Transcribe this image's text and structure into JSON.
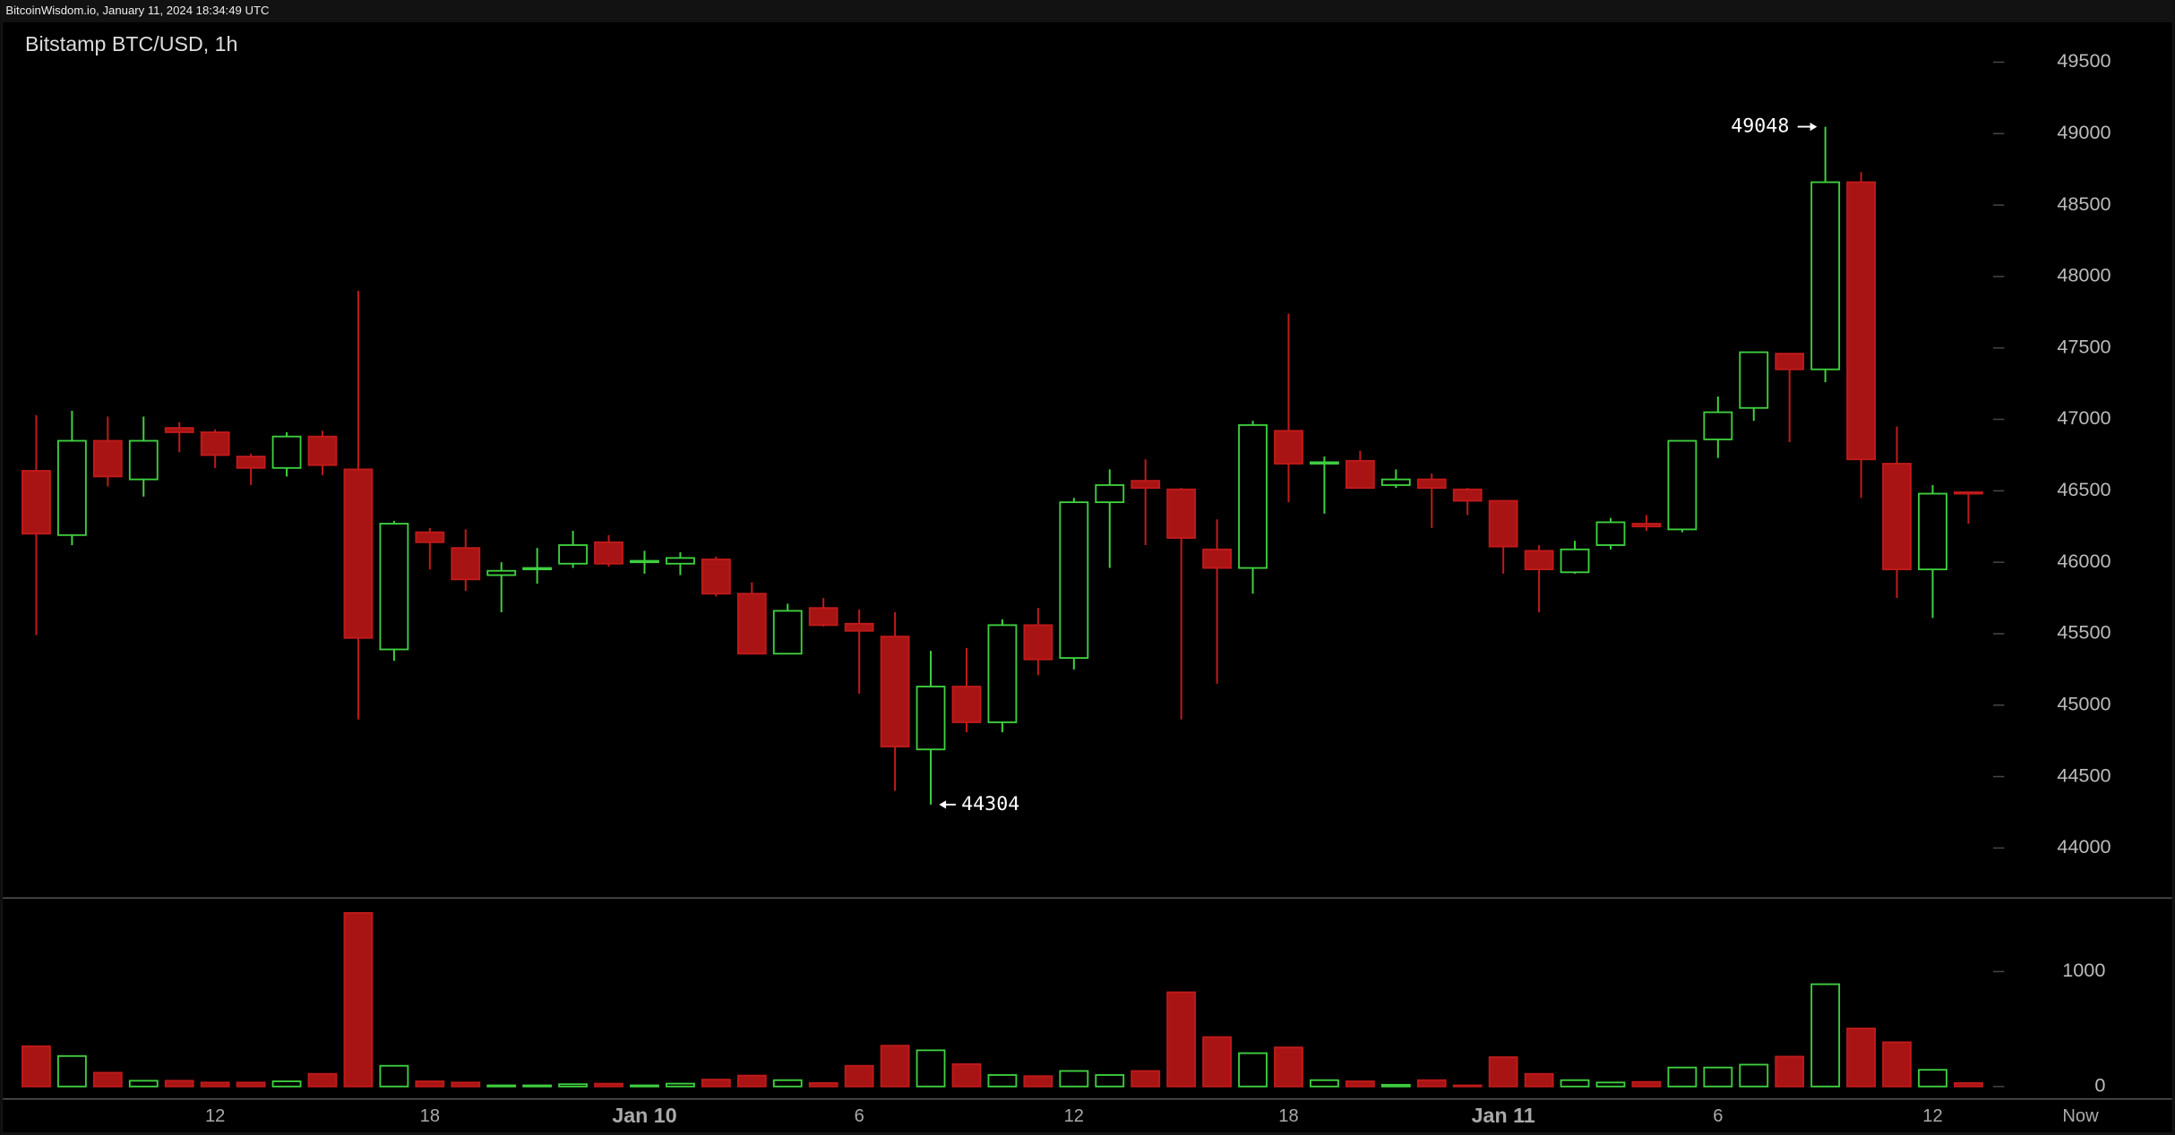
{
  "header": "BitcoinWisdom.io, January 11, 2024 18:34:49 UTC",
  "chart_data": {
    "type": "candlestick",
    "title": "Bitstamp BTC/USD, 1h",
    "categories": [
      null,
      null,
      null,
      null,
      null,
      "12",
      null,
      null,
      null,
      null,
      null,
      "18",
      null,
      null,
      null,
      null,
      null,
      "Jan 10",
      null,
      null,
      null,
      null,
      null,
      "6",
      null,
      null,
      null,
      null,
      null,
      "12",
      null,
      null,
      null,
      null,
      null,
      "18",
      null,
      null,
      null,
      null,
      null,
      "Jan 11",
      null,
      null,
      null,
      null,
      null,
      "6",
      null,
      null,
      null,
      null,
      null,
      "12",
      null
    ],
    "now_label": "Now",
    "open": [
      46640,
      46190,
      46850,
      46580,
      46940,
      46910,
      46740,
      46660,
      46880,
      46650,
      45390,
      46210,
      46100,
      45910,
      45950,
      45990,
      46140,
      46000,
      45990,
      46020,
      45780,
      45360,
      45680,
      45570,
      45480,
      44690,
      45130,
      44880,
      45560,
      45330,
      46420,
      46570,
      46510,
      46090,
      45960,
      46920,
      46690,
      46710,
      46540,
      46580,
      46510,
      46430,
      46080,
      45930,
      46120,
      46270,
      46230,
      46860,
      47080,
      47460,
      47350,
      48660,
      46690,
      45950,
      46490
    ],
    "high": [
      47030,
      47060,
      47020,
      47020,
      46980,
      46930,
      46760,
      46910,
      46920,
      47900,
      46290,
      46240,
      46230,
      46000,
      46100,
      46220,
      46190,
      46080,
      46070,
      46040,
      45860,
      45710,
      45750,
      45670,
      45650,
      45380,
      45400,
      45600,
      45680,
      46450,
      46650,
      46720,
      46520,
      46300,
      46990,
      47740,
      46740,
      46780,
      46650,
      46620,
      46520,
      46430,
      46120,
      46150,
      46310,
      46330,
      46850,
      47160,
      47470,
      47460,
      49048,
      48730,
      46950,
      46540,
      46490
    ],
    "low": [
      45490,
      46120,
      46530,
      46460,
      46770,
      46660,
      46540,
      46600,
      46610,
      44900,
      45310,
      45950,
      45800,
      45650,
      45850,
      45960,
      45970,
      45920,
      45910,
      45760,
      45360,
      45360,
      45550,
      45080,
      44400,
      44304,
      44810,
      44810,
      45210,
      45250,
      45960,
      46120,
      44900,
      45150,
      45780,
      46420,
      46340,
      46520,
      46520,
      46240,
      46330,
      45920,
      45650,
      45920,
      46090,
      46220,
      46210,
      46730,
      46990,
      46840,
      47260,
      46450,
      45750,
      45610,
      46270
    ],
    "close": [
      46200,
      46850,
      46600,
      46850,
      46910,
      46750,
      46660,
      46880,
      46680,
      45470,
      46270,
      46140,
      45880,
      45940,
      45960,
      46120,
      45990,
      46010,
      46030,
      45780,
      45360,
      45660,
      45560,
      45520,
      44710,
      45130,
      44880,
      45560,
      45320,
      46420,
      46540,
      46520,
      46170,
      45960,
      46960,
      46690,
      46700,
      46520,
      46580,
      46520,
      46430,
      46110,
      45950,
      46090,
      46280,
      46250,
      46850,
      47050,
      47470,
      47350,
      48660,
      46720,
      45950,
      46480,
      46480
    ],
    "volume": [
      350,
      265,
      120,
      50,
      50,
      35,
      35,
      45,
      110,
      1510,
      180,
      45,
      35,
      10,
      10,
      20,
      25,
      10,
      25,
      60,
      95,
      55,
      30,
      180,
      355,
      315,
      195,
      100,
      90,
      135,
      100,
      135,
      820,
      430,
      290,
      340,
      55,
      45,
      15,
      55,
      10,
      255,
      110,
      55,
      35,
      40,
      165,
      165,
      190,
      260,
      890,
      505,
      385,
      145,
      30
    ],
    "up_color": "#3fcf3f",
    "down_color": "#a81414",
    "ylim": [
      43650,
      49780
    ],
    "yticks": [
      44000,
      44500,
      45000,
      45500,
      46000,
      46500,
      47000,
      47500,
      48000,
      48500,
      49000,
      49500
    ],
    "vlim": [
      0,
      1640
    ],
    "vticks": [
      0,
      1000
    ]
  }
}
